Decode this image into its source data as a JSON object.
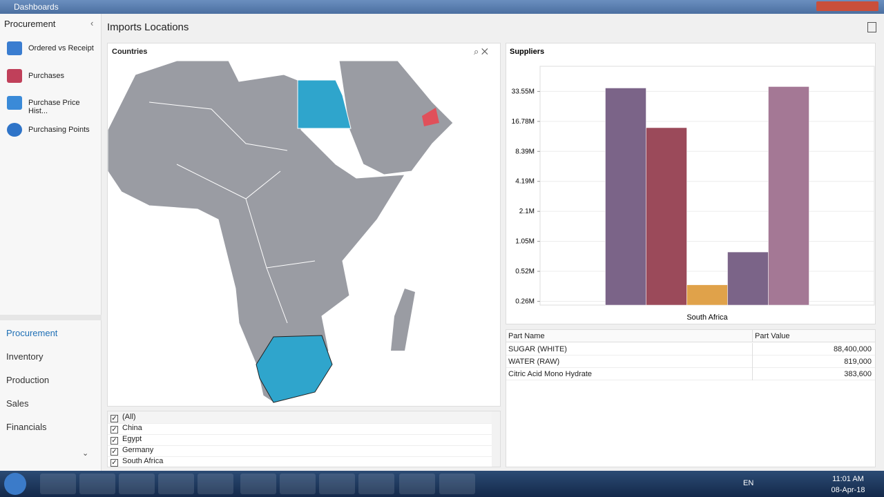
{
  "window": {
    "title": "Dashboards"
  },
  "sidebar": {
    "header": "Procurement",
    "items": [
      "Ordered vs Receipt",
      "Purchases",
      "Purchase Price Hist...",
      "Purchasing Points"
    ],
    "nav": [
      "Procurement",
      "Inventory",
      "Production",
      "Sales",
      "Financials"
    ]
  },
  "dashboard": {
    "title": "Imports Locations"
  },
  "countries": {
    "title": "Countries",
    "list": [
      "(All)",
      "China",
      "Egypt",
      "Germany",
      "South Africa"
    ]
  },
  "chart_data": {
    "type": "bar",
    "title": "Suppliers",
    "categories": [
      "South Africa"
    ],
    "series": [
      {
        "color": "#7b6488",
        "values": [
          36300000
        ]
      },
      {
        "color": "#9b4a5a",
        "values": [
          14500000
        ]
      },
      {
        "color": "#e0a24a",
        "values": [
          383600
        ]
      },
      {
        "color": "#7b6488",
        "values": [
          819000
        ]
      },
      {
        "color": "#a47895",
        "values": [
          37500000
        ]
      }
    ],
    "log_scale": true,
    "grid": true,
    "ylim": [
      240000,
      60000000
    ],
    "yticks": [
      {
        "value": 262144,
        "label": "0.26M"
      },
      {
        "value": 524288,
        "label": "0.52M"
      },
      {
        "value": 1048576,
        "label": "1.05M"
      },
      {
        "value": 2097152,
        "label": "2.1M"
      },
      {
        "value": 4194304,
        "label": "4.19M"
      },
      {
        "value": 8388608,
        "label": "8.39M"
      },
      {
        "value": 16777216,
        "label": "16.78M"
      },
      {
        "value": 33554432,
        "label": "33.55M"
      }
    ]
  },
  "table": {
    "columns": [
      "Part Name",
      "Part Value"
    ],
    "rows": [
      [
        "SUGAR (WHITE)",
        "88,400,000"
      ],
      [
        "WATER (RAW)",
        "819,000"
      ],
      [
        "Citric Acid Mono Hydrate",
        "383,600"
      ]
    ]
  },
  "taskbar": {
    "language": "EN",
    "time": "11:01 AM",
    "date": "08-Apr-18"
  }
}
